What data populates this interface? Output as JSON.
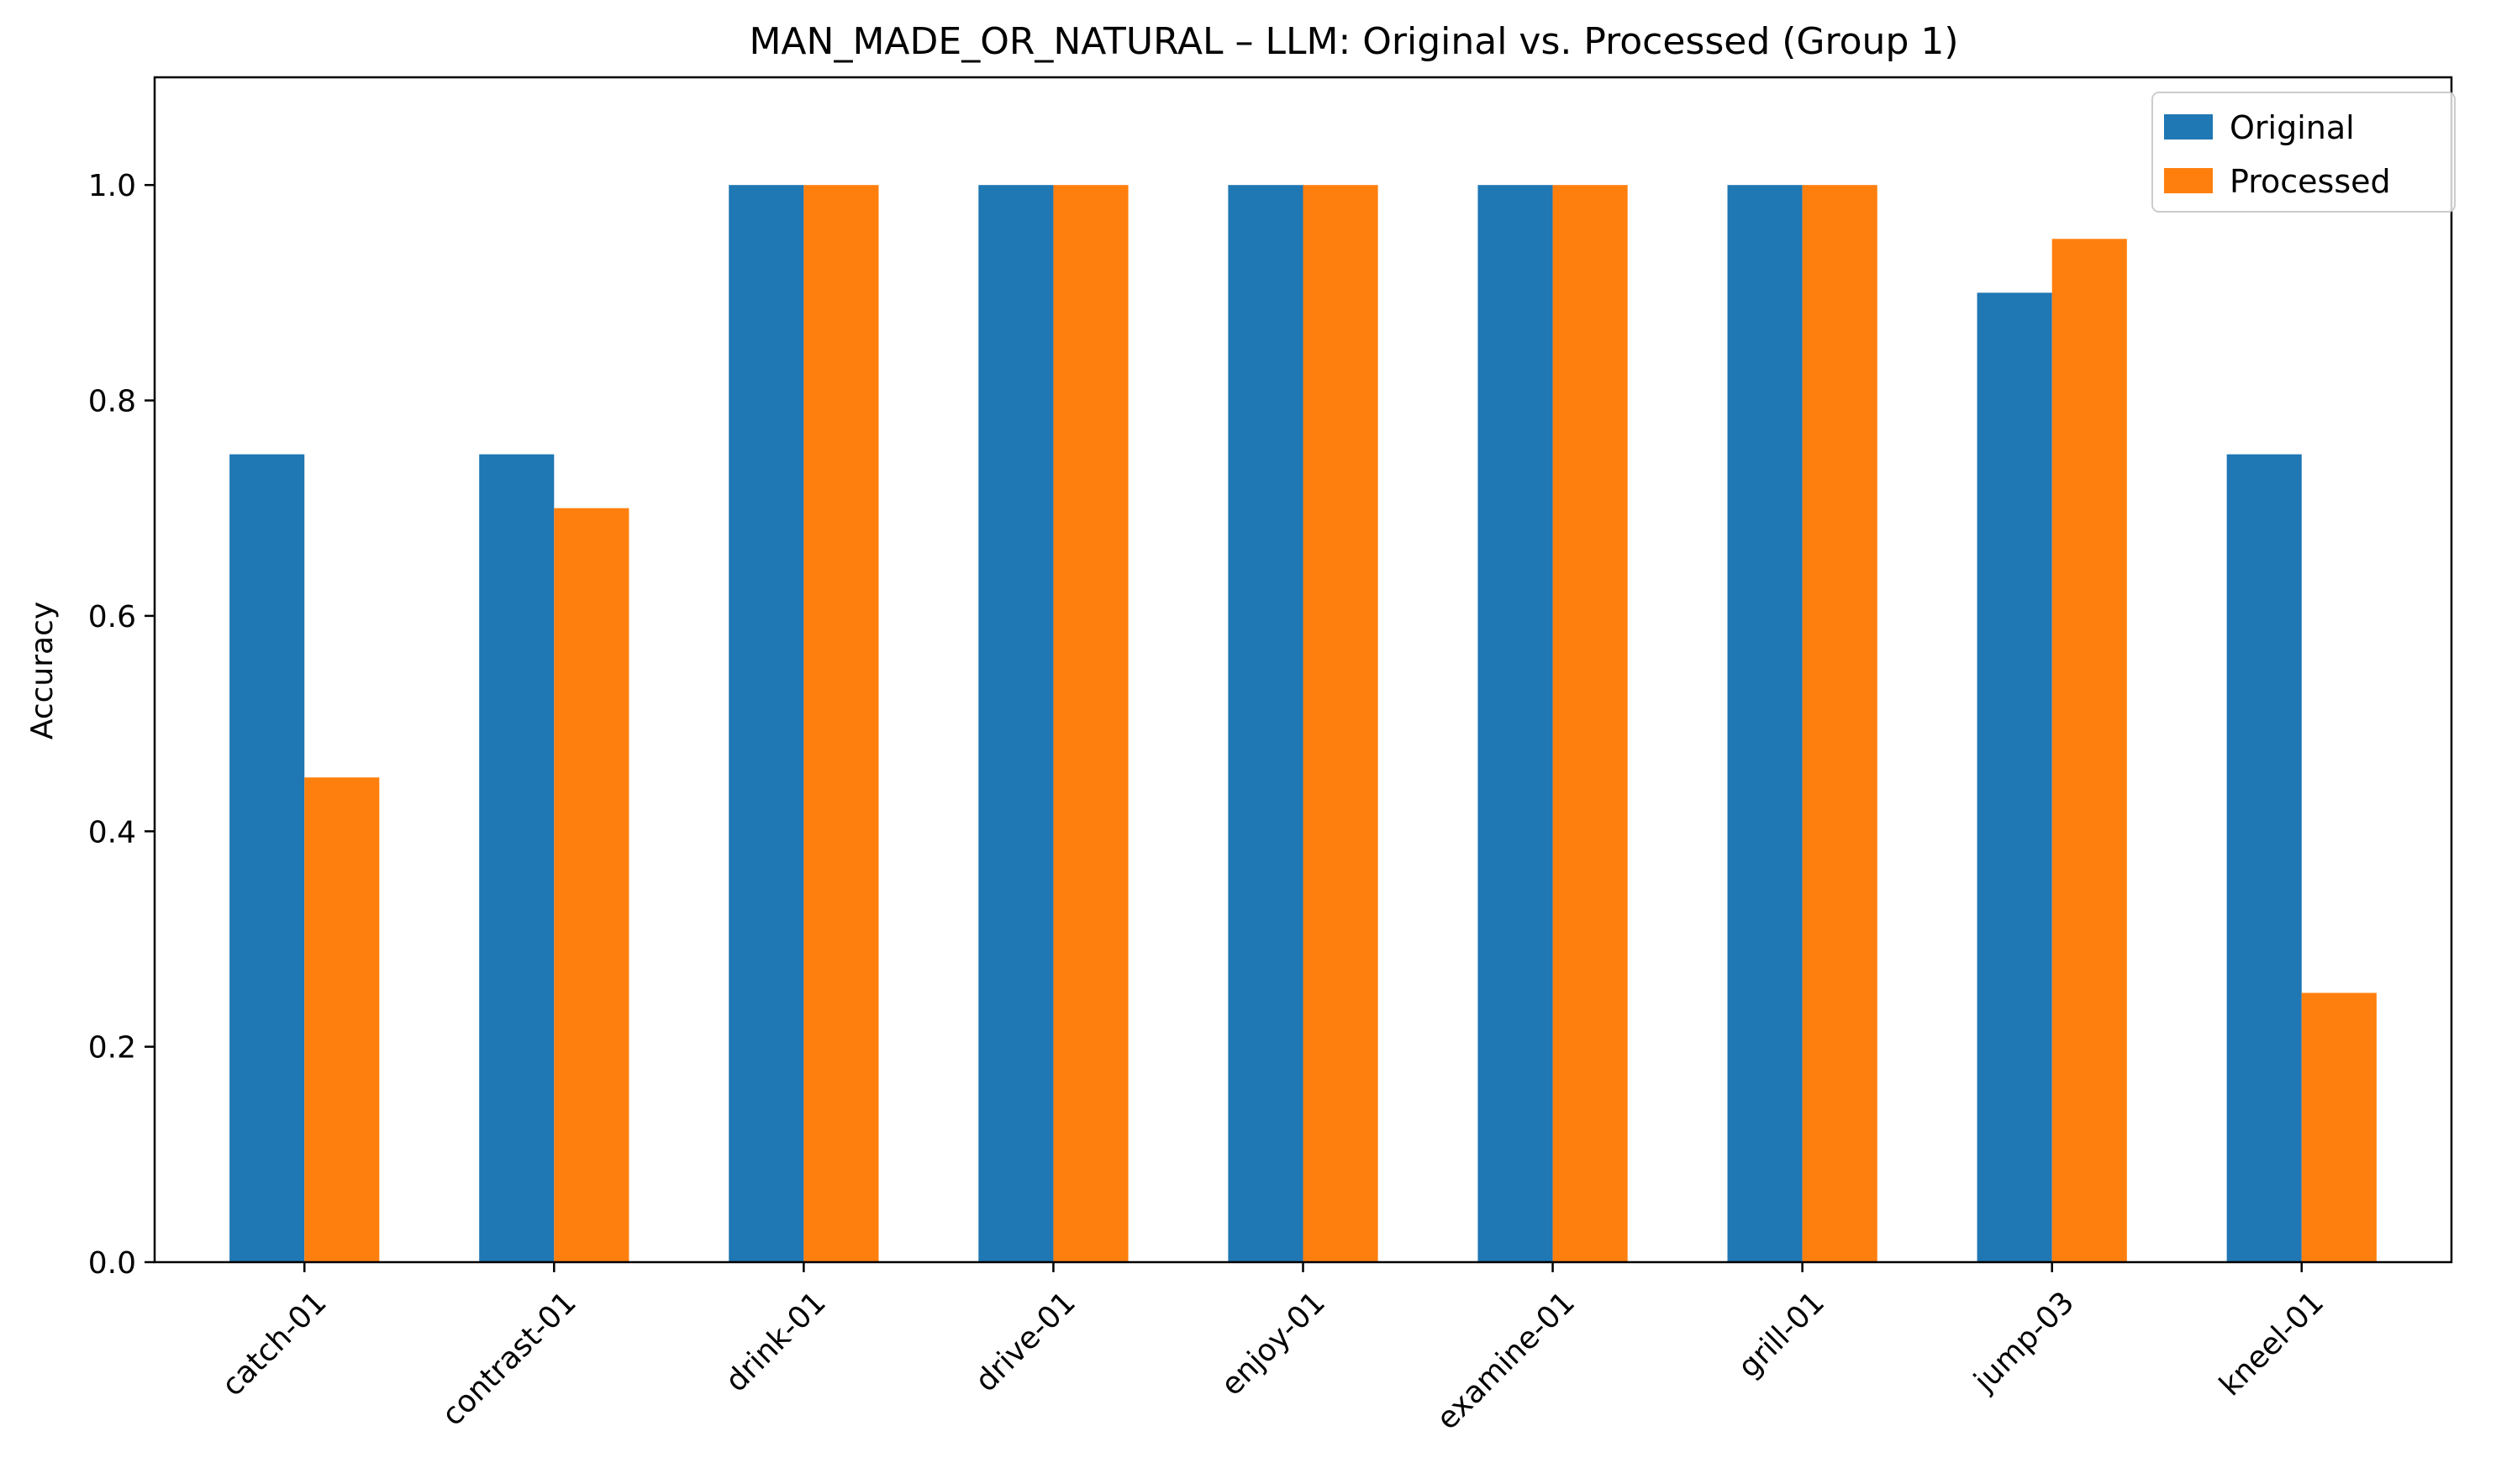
{
  "chart_data": {
    "type": "bar",
    "title": "MAN_MADE_OR_NATURAL – LLM: Original vs. Processed (Group 1)",
    "xlabel": "",
    "ylabel": "Accuracy",
    "ylim": [
      0,
      1.1
    ],
    "yticks": [
      "0.0",
      "0.2",
      "0.4",
      "0.6",
      "0.8",
      "1.0"
    ],
    "categories": [
      "catch-01",
      "contrast-01",
      "drink-01",
      "drive-01",
      "enjoy-01",
      "examine-01",
      "grill-01",
      "jump-03",
      "kneel-01"
    ],
    "series": [
      {
        "name": "Original",
        "color": "#1f77b4",
        "values": [
          0.75,
          0.75,
          1.0,
          1.0,
          1.0,
          1.0,
          1.0,
          0.9,
          0.75
        ]
      },
      {
        "name": "Processed",
        "color": "#ff7f0e",
        "values": [
          0.45,
          0.7,
          1.0,
          1.0,
          1.0,
          1.0,
          1.0,
          0.95,
          0.25
        ]
      }
    ],
    "grid": false,
    "legend": "top-right"
  }
}
